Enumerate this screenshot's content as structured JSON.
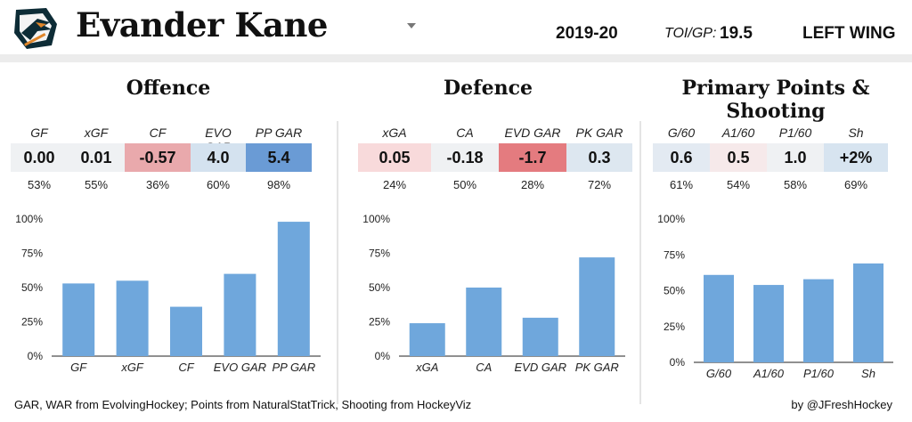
{
  "header": {
    "team_logo": "shark-logo-icon",
    "player_name": "Evander Kane",
    "season": "2019-20",
    "toi_label": "TOI/GP:",
    "toi_value": "19.5",
    "position": "LEFT WING"
  },
  "sections": [
    {
      "title": "Offence",
      "metrics": [
        {
          "label": "GF",
          "value": "0.00",
          "pct": "53%",
          "bg": "#eff1f3"
        },
        {
          "label": "xGF",
          "value": "0.01",
          "pct": "55%",
          "bg": "#eff1f3"
        },
        {
          "label": "CF",
          "value": "-0.57",
          "pct": "36%",
          "bg": "#e9a9ac"
        },
        {
          "label": "EVO GAR",
          "value": "4.0",
          "pct": "60%",
          "bg": "#d4e2ef"
        },
        {
          "label": "PP GAR",
          "value": "5.4",
          "pct": "98%",
          "bg": "#6a9bd5"
        }
      ]
    },
    {
      "title": "Defence",
      "metrics": [
        {
          "label": "xGA",
          "value": "0.05",
          "pct": "24%",
          "bg": "#f8dadb"
        },
        {
          "label": "CA",
          "value": "-0.18",
          "pct": "50%",
          "bg": "#eff1f3"
        },
        {
          "label": "EVD GAR",
          "value": "-1.7",
          "pct": "28%",
          "bg": "#e47b7f"
        },
        {
          "label": "PK GAR",
          "value": "0.3",
          "pct": "72%",
          "bg": "#dde7f0"
        }
      ]
    },
    {
      "title": "Primary Points & Shooting",
      "metrics": [
        {
          "label": "G/60",
          "value": "0.6",
          "pct": "61%",
          "bg": "#e3eaf2"
        },
        {
          "label": "A1/60",
          "value": "0.5",
          "pct": "54%",
          "bg": "#f6e9ea"
        },
        {
          "label": "P1/60",
          "value": "1.0",
          "pct": "58%",
          "bg": "#eff1f3"
        },
        {
          "label": "Sh",
          "value": "+2%",
          "pct": "69%",
          "bg": "#d7e4f0"
        }
      ]
    }
  ],
  "chart_data": [
    {
      "type": "bar",
      "categories": [
        "GF",
        "xGF",
        "CF",
        "EVO GAR",
        "PP GAR"
      ],
      "values": [
        53,
        55,
        36,
        60,
        98
      ],
      "ylim": [
        0,
        100
      ],
      "yticks": [
        "0%",
        "25%",
        "50%",
        "75%",
        "100%"
      ],
      "color": "#6fa7dc"
    },
    {
      "type": "bar",
      "categories": [
        "xGA",
        "CA",
        "EVD GAR",
        "PK GAR"
      ],
      "values": [
        24,
        50,
        28,
        72
      ],
      "ylim": [
        0,
        100
      ],
      "yticks": [
        "0%",
        "25%",
        "50%",
        "75%",
        "100%"
      ],
      "color": "#6fa7dc"
    },
    {
      "type": "bar",
      "categories": [
        "G/60",
        "A1/60",
        "P1/60",
        "Sh"
      ],
      "values": [
        61,
        54,
        58,
        69
      ],
      "ylim": [
        0,
        100
      ],
      "yticks": [
        "0%",
        "25%",
        "50%",
        "75%",
        "100%"
      ],
      "color": "#6fa7dc"
    }
  ],
  "footer": {
    "sources": "GAR, WAR from EvolvingHockey; Points from NaturalStatTrick, Shooting from HockeyViz",
    "credit": "by @JFreshHockey"
  }
}
